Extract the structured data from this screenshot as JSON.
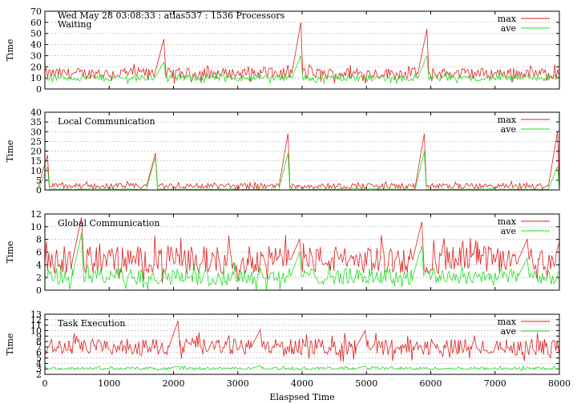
{
  "header": "Wed May 28 03:08:33 : atlas537 : 1536 Processors",
  "x_axis_label": "Elaspsed Time",
  "chart_data": [
    {
      "type": "line",
      "title": "Waiting",
      "ylabel": "Time",
      "xlim": [
        0,
        8000
      ],
      "ylim": [
        0,
        70
      ],
      "yticks": [
        0,
        10,
        20,
        30,
        40,
        50,
        60,
        70
      ],
      "xticks": [],
      "grid": true,
      "legend_position": "top-right",
      "spikes": [
        [
          1850,
          45,
          24
        ],
        [
          3980,
          60,
          30
        ],
        [
          5940,
          54,
          30
        ]
      ],
      "series": [
        {
          "name": "max",
          "color": "#dd2222",
          "base": 14,
          "noise": 5
        },
        {
          "name": "ave",
          "color": "#22dd22",
          "base": 10,
          "noise": 3
        }
      ]
    },
    {
      "type": "line",
      "title": "Local Communication",
      "ylabel": "Time",
      "xlim": [
        0,
        8000
      ],
      "ylim": [
        0,
        40
      ],
      "yticks": [
        0,
        5,
        10,
        15,
        20,
        25,
        30,
        35,
        40
      ],
      "xticks": [],
      "grid": true,
      "legend_position": "top-right",
      "spikes": [
        [
          40,
          18,
          12
        ],
        [
          1720,
          19,
          17
        ],
        [
          3780,
          29,
          19
        ],
        [
          5900,
          29,
          20
        ],
        [
          7970,
          30,
          12
        ]
      ],
      "series": [
        {
          "name": "max",
          "color": "#dd2222",
          "base": 2,
          "noise": 1.5
        },
        {
          "name": "ave",
          "color": "#22dd22",
          "base": 0.4,
          "noise": 0.3
        }
      ]
    },
    {
      "type": "line",
      "title": "Global Communication",
      "ylabel": "Time",
      "xlim": [
        0,
        8000
      ],
      "ylim": [
        0,
        12
      ],
      "yticks": [
        0,
        2,
        4,
        6,
        8,
        10,
        12
      ],
      "xticks": [],
      "grid": true,
      "legend_position": "top-right",
      "spikes": [
        [
          570,
          11.5,
          9
        ],
        [
          5860,
          10.8,
          7
        ],
        [
          3960,
          8,
          6
        ],
        [
          7500,
          8,
          5
        ]
      ],
      "series": [
        {
          "name": "max",
          "color": "#dd2222",
          "base": 4.8,
          "noise": 2.2
        },
        {
          "name": "ave",
          "color": "#22dd22",
          "base": 2.2,
          "noise": 1.3
        }
      ]
    },
    {
      "type": "line",
      "title": "Task Execution",
      "ylabel": "Time",
      "xlim": [
        0,
        8000
      ],
      "ylim": [
        2,
        13
      ],
      "yticks": [
        2,
        3,
        4,
        5,
        6,
        7,
        8,
        9,
        10,
        11,
        12,
        13
      ],
      "xticks": [
        0,
        1000,
        2000,
        3000,
        4000,
        5000,
        6000,
        7000,
        8000
      ],
      "grid": true,
      "legend_position": "top-right",
      "spikes": [
        [
          2070,
          11.8,
          3.5
        ],
        [
          3350,
          10.2,
          3.6
        ],
        [
          4980,
          10,
          3.5
        ]
      ],
      "series": [
        {
          "name": "max",
          "color": "#dd2222",
          "base": 7,
          "noise": 1.5
        },
        {
          "name": "ave",
          "color": "#22dd22",
          "base": 3.1,
          "noise": 0.25
        }
      ]
    }
  ]
}
